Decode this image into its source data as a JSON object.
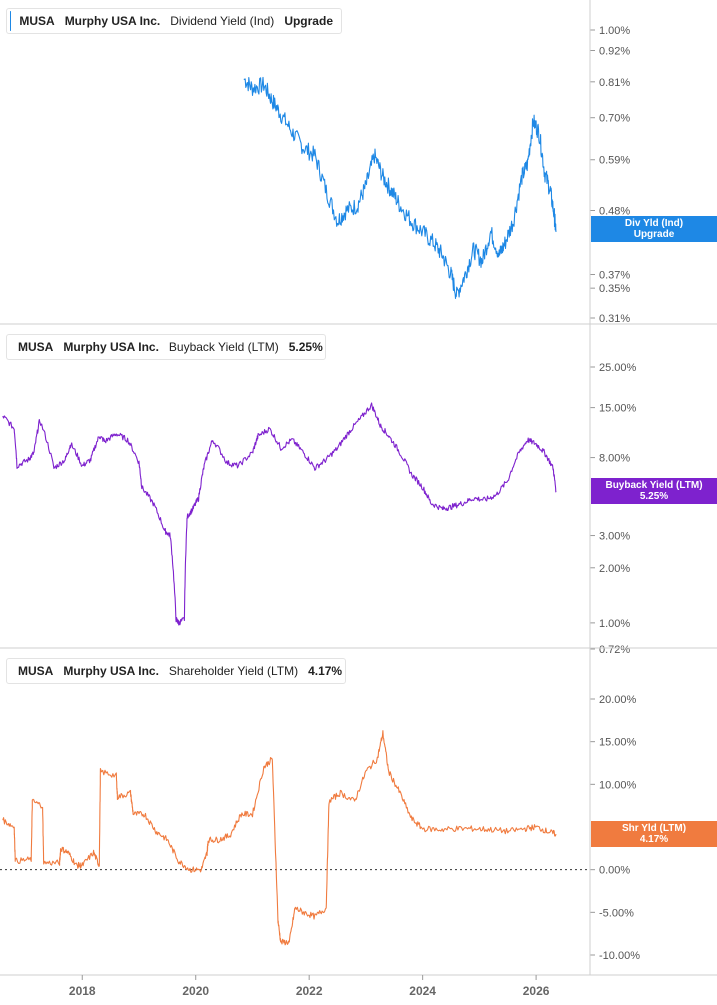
{
  "chart_data": [
    {
      "type": "line",
      "ticker": "MUSA",
      "company": "Murphy USA Inc.",
      "metric": "Dividend Yield (Ind)",
      "value_label": "Upgrade",
      "scale": "log",
      "color": "#1e88e5",
      "flag_line1": "Div Yld (Ind)",
      "flag_line2": "Upgrade",
      "last_value": 0.445,
      "yticks": [
        {
          "v": 1.0,
          "label": "1.00%"
        },
        {
          "v": 0.92,
          "label": "0.92%"
        },
        {
          "v": 0.81,
          "label": "0.81%"
        },
        {
          "v": 0.7,
          "label": "0.70%"
        },
        {
          "v": 0.59,
          "label": "0.59%"
        },
        {
          "v": 0.48,
          "label": "0.48%"
        },
        {
          "v": 0.37,
          "label": "0.37%"
        },
        {
          "v": 0.35,
          "label": "0.35%"
        },
        {
          "v": 0.31,
          "label": "0.31%"
        }
      ],
      "x": [
        2020.85,
        2021.0,
        2021.2,
        2021.35,
        2021.5,
        2021.7,
        2021.9,
        2022.1,
        2022.3,
        2022.5,
        2022.65,
        2022.85,
        2023.0,
        2023.15,
        2023.3,
        2023.45,
        2023.6,
        2023.8,
        2024.0,
        2024.2,
        2024.35,
        2024.5,
        2024.6,
        2024.75,
        2024.9,
        2025.05,
        2025.2,
        2025.35,
        2025.45,
        2025.6,
        2025.75,
        2025.85,
        2025.95,
        2026.05,
        2026.15,
        2026.25,
        2026.32,
        2026.35
      ],
      "y": [
        0.82,
        0.79,
        0.8,
        0.75,
        0.71,
        0.66,
        0.62,
        0.6,
        0.52,
        0.46,
        0.48,
        0.49,
        0.53,
        0.6,
        0.55,
        0.52,
        0.49,
        0.46,
        0.44,
        0.42,
        0.4,
        0.37,
        0.34,
        0.37,
        0.41,
        0.39,
        0.44,
        0.4,
        0.42,
        0.46,
        0.55,
        0.58,
        0.69,
        0.66,
        0.56,
        0.52,
        0.47,
        0.44
      ]
    },
    {
      "type": "line",
      "ticker": "MUSA",
      "company": "Murphy USA Inc.",
      "metric": "Buyback Yield (LTM)",
      "value_label": "5.25%",
      "scale": "log",
      "color": "#7e22ce",
      "flag_line1": "Buyback Yield (LTM)",
      "flag_line2": "5.25%",
      "last_value": 5.25,
      "yticks": [
        {
          "v": 25,
          "label": "25.00%"
        },
        {
          "v": 15,
          "label": "15.00%"
        },
        {
          "v": 8,
          "label": "8.00%"
        },
        {
          "v": 3,
          "label": "3.00%"
        },
        {
          "v": 2,
          "label": "2.00%"
        },
        {
          "v": 1,
          "label": "1.00%"
        },
        {
          "v": 0.72,
          "label": "0.72%"
        }
      ],
      "x": [
        2016.6,
        2016.8,
        2016.85,
        2017.05,
        2017.15,
        2017.25,
        2017.5,
        2017.7,
        2017.8,
        2018.0,
        2018.15,
        2018.3,
        2018.4,
        2018.6,
        2018.8,
        2019.0,
        2019.05,
        2019.25,
        2019.45,
        2019.55,
        2019.65,
        2019.7,
        2019.8,
        2019.85,
        2019.95,
        2020.05,
        2020.15,
        2020.3,
        2020.55,
        2020.75,
        2021.0,
        2021.1,
        2021.3,
        2021.5,
        2021.7,
        2021.9,
        2022.1,
        2022.3,
        2022.5,
        2022.7,
        2022.9,
        2023.1,
        2023.25,
        2023.4,
        2023.6,
        2023.8,
        2024.0,
        2024.15,
        2024.35,
        2024.5,
        2024.7,
        2024.9,
        2025.1,
        2025.3,
        2025.5,
        2025.7,
        2025.85,
        2026.0,
        2026.15,
        2026.3,
        2026.35
      ],
      "y": [
        13.5,
        11.5,
        7.2,
        7.8,
        8.5,
        12.8,
        7.0,
        7.8,
        9.5,
        7.2,
        7.8,
        10.5,
        9.8,
        10.8,
        10.0,
        7.5,
        5.5,
        4.5,
        3.2,
        3.0,
        1.05,
        1.0,
        1.05,
        3.8,
        4.2,
        4.8,
        7.2,
        10.0,
        7.5,
        7.2,
        8.5,
        10.5,
        11.5,
        9.0,
        10.0,
        8.5,
        7.0,
        7.8,
        9.0,
        11.0,
        13.0,
        15.5,
        12.0,
        10.5,
        8.5,
        6.5,
        5.5,
        4.5,
        4.2,
        4.3,
        4.5,
        4.8,
        4.7,
        5.0,
        6.0,
        8.5,
        10.0,
        9.5,
        8.5,
        7.0,
        5.25
      ]
    },
    {
      "type": "line",
      "ticker": "MUSA",
      "company": "Murphy USA Inc.",
      "metric": "Shareholder Yield (LTM)",
      "value_label": "4.17%",
      "scale": "linear",
      "color": "#f07b3f",
      "flag_line1": "Shr Yld (LTM)",
      "flag_line2": "4.17%",
      "last_value": 4.17,
      "yticks": [
        {
          "v": 20,
          "label": "20.00%"
        },
        {
          "v": 15,
          "label": "15.00%"
        },
        {
          "v": 10,
          "label": "10.00%"
        },
        {
          "v": 0,
          "label": "0.00%"
        },
        {
          "v": -5,
          "label": "-5.00%"
        },
        {
          "v": -10,
          "label": "-10.00%"
        }
      ],
      "x": [
        2016.6,
        2016.8,
        2016.82,
        2017.1,
        2017.12,
        2017.3,
        2017.32,
        2017.6,
        2017.62,
        2017.75,
        2017.9,
        2018.0,
        2018.2,
        2018.3,
        2018.32,
        2018.6,
        2018.62,
        2018.85,
        2018.9,
        2019.1,
        2019.3,
        2019.5,
        2019.7,
        2019.9,
        2020.1,
        2020.2,
        2020.22,
        2020.4,
        2020.6,
        2020.8,
        2021.0,
        2021.2,
        2021.35,
        2021.45,
        2021.5,
        2021.65,
        2021.75,
        2021.9,
        2022.1,
        2022.3,
        2022.35,
        2022.55,
        2022.8,
        2023.0,
        2023.2,
        2023.3,
        2023.4,
        2023.6,
        2023.8,
        2024.0,
        2024.3,
        2024.6,
        2024.9,
        2025.2,
        2025.5,
        2025.8,
        2026.0,
        2026.2,
        2026.35
      ],
      "y": [
        5.8,
        5.0,
        1.0,
        1.2,
        8.0,
        7.5,
        0.8,
        0.8,
        2.5,
        2.0,
        0.5,
        0.5,
        2.0,
        0.5,
        11.5,
        11.0,
        8.5,
        9.0,
        6.5,
        6.5,
        4.5,
        3.5,
        1.0,
        0.0,
        0.0,
        2.0,
        3.5,
        3.5,
        4.0,
        6.5,
        6.5,
        12.0,
        13.0,
        -6.0,
        -8.5,
        -8.5,
        -4.5,
        -5.0,
        -5.5,
        -4.5,
        8.0,
        9.0,
        8.0,
        11.5,
        13.0,
        16.0,
        11.5,
        9.0,
        6.0,
        4.8,
        4.7,
        4.8,
        4.8,
        4.7,
        4.5,
        4.8,
        5.0,
        4.5,
        4.17
      ]
    }
  ],
  "x_axis": {
    "ticks": [
      {
        "v": 2018,
        "label": "2018"
      },
      {
        "v": 2020,
        "label": "2020"
      },
      {
        "v": 2022,
        "label": "2022"
      },
      {
        "v": 2024,
        "label": "2024"
      },
      {
        "v": 2026,
        "label": "2026"
      }
    ]
  }
}
